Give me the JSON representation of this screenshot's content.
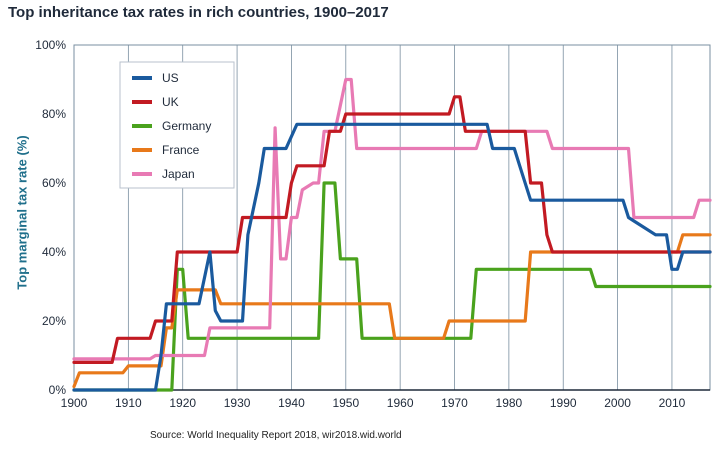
{
  "chart_data": {
    "type": "line",
    "title": "Top inheritance tax rates in rich countries, 1900–2017",
    "ylabel": "Top marginal tax rate (%)",
    "xlabel": "",
    "source": "Source: World Inequality Report 2018, wir2018.wid.world",
    "xlim": [
      1900,
      2017
    ],
    "ylim": [
      0,
      100
    ],
    "xticks": [
      "1900",
      "1910",
      "1920",
      "1930",
      "1940",
      "1950",
      "1960",
      "1970",
      "1980",
      "1990",
      "2000",
      "2010"
    ],
    "yticks": [
      "0%",
      "20%",
      "40%",
      "60%",
      "80%",
      "100%"
    ],
    "grid": "vertical",
    "legend_position": "top-left",
    "series": [
      {
        "name": "US",
        "color": "#1a5a9e",
        "points": [
          [
            1900,
            0
          ],
          [
            1915,
            0
          ],
          [
            1916,
            10
          ],
          [
            1917,
            25
          ],
          [
            1923,
            25
          ],
          [
            1925,
            40
          ],
          [
            1926,
            23
          ],
          [
            1927,
            20
          ],
          [
            1931,
            20
          ],
          [
            1932,
            45
          ],
          [
            1934,
            60
          ],
          [
            1935,
            70
          ],
          [
            1939,
            70
          ],
          [
            1941,
            77
          ],
          [
            1976,
            77
          ],
          [
            1977,
            70
          ],
          [
            1981,
            70
          ],
          [
            1982,
            65
          ],
          [
            1984,
            55
          ],
          [
            2001,
            55
          ],
          [
            2002,
            50
          ],
          [
            2003,
            49
          ],
          [
            2007,
            45
          ],
          [
            2009,
            45
          ],
          [
            2010,
            35
          ],
          [
            2011,
            35
          ],
          [
            2012,
            40
          ],
          [
            2017,
            40
          ]
        ]
      },
      {
        "name": "UK",
        "color": "#c21a22",
        "points": [
          [
            1900,
            8
          ],
          [
            1907,
            8
          ],
          [
            1908,
            15
          ],
          [
            1914,
            15
          ],
          [
            1915,
            20
          ],
          [
            1918,
            20
          ],
          [
            1919,
            40
          ],
          [
            1930,
            40
          ],
          [
            1931,
            50
          ],
          [
            1939,
            50
          ],
          [
            1940,
            60
          ],
          [
            1941,
            65
          ],
          [
            1946,
            65
          ],
          [
            1947,
            75
          ],
          [
            1949,
            75
          ],
          [
            1950,
            80
          ],
          [
            1969,
            80
          ],
          [
            1970,
            85
          ],
          [
            1971,
            85
          ],
          [
            1972,
            75
          ],
          [
            1983,
            75
          ],
          [
            1984,
            60
          ],
          [
            1986,
            60
          ],
          [
            1987,
            45
          ],
          [
            1988,
            40
          ],
          [
            2017,
            40
          ]
        ]
      },
      {
        "name": "Germany",
        "color": "#4aa21d",
        "points": [
          [
            1900,
            0
          ],
          [
            1918,
            0
          ],
          [
            1919,
            35
          ],
          [
            1920,
            35
          ],
          [
            1921,
            15
          ],
          [
            1945,
            15
          ],
          [
            1946,
            60
          ],
          [
            1948,
            60
          ],
          [
            1949,
            38
          ],
          [
            1952,
            38
          ],
          [
            1953,
            15
          ],
          [
            1973,
            15
          ],
          [
            1974,
            35
          ],
          [
            1995,
            35
          ],
          [
            1996,
            30
          ],
          [
            2017,
            30
          ]
        ]
      },
      {
        "name": "France",
        "color": "#e8791a",
        "points": [
          [
            1900,
            1
          ],
          [
            1901,
            5
          ],
          [
            1909,
            5
          ],
          [
            1910,
            7
          ],
          [
            1916,
            7
          ],
          [
            1917,
            18
          ],
          [
            1918,
            18
          ],
          [
            1919,
            29
          ],
          [
            1926,
            29
          ],
          [
            1927,
            25
          ],
          [
            1958,
            25
          ],
          [
            1959,
            15
          ],
          [
            1968,
            15
          ],
          [
            1969,
            20
          ],
          [
            1983,
            20
          ],
          [
            1984,
            40
          ],
          [
            2011,
            40
          ],
          [
            2012,
            45
          ],
          [
            2017,
            45
          ]
        ]
      },
      {
        "name": "Japan",
        "color": "#e87ab4",
        "points": [
          [
            1900,
            9
          ],
          [
            1914,
            9
          ],
          [
            1915,
            10
          ],
          [
            1924,
            10
          ],
          [
            1925,
            18
          ],
          [
            1936,
            18
          ],
          [
            1937,
            76
          ],
          [
            1938,
            38
          ],
          [
            1939,
            38
          ],
          [
            1940,
            50
          ],
          [
            1941,
            50
          ],
          [
            1942,
            58
          ],
          [
            1944,
            60
          ],
          [
            1945,
            60
          ],
          [
            1946,
            75
          ],
          [
            1948,
            75
          ],
          [
            1950,
            90
          ],
          [
            1951,
            90
          ],
          [
            1952,
            70
          ],
          [
            1974,
            70
          ],
          [
            1975,
            75
          ],
          [
            1987,
            75
          ],
          [
            1988,
            70
          ],
          [
            2002,
            70
          ],
          [
            2003,
            50
          ],
          [
            2014,
            50
          ],
          [
            2015,
            55
          ],
          [
            2017,
            55
          ]
        ]
      }
    ]
  }
}
